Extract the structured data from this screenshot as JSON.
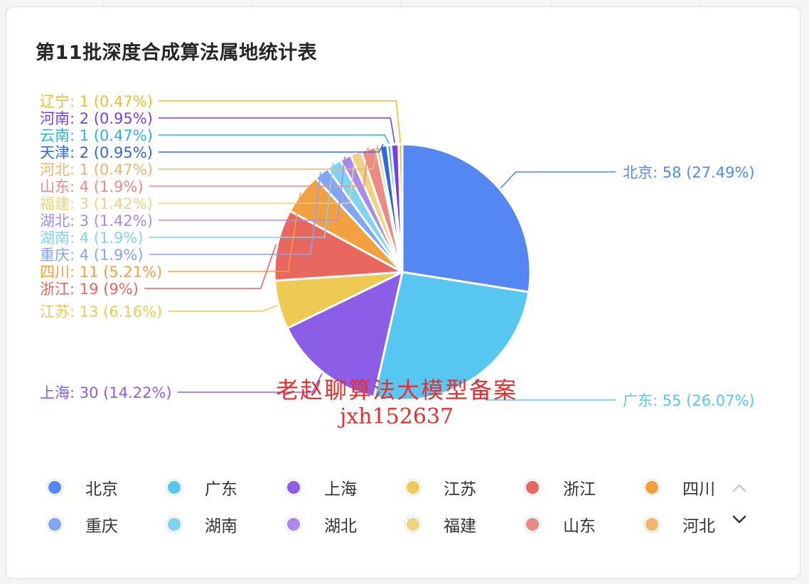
{
  "chart_data": {
    "type": "pie",
    "title": "第11批深度合成算法属地统计表",
    "slices": [
      {
        "label": "北京",
        "value": 58,
        "percent": "27.49%",
        "color": "#5487f2"
      },
      {
        "label": "广东",
        "value": 55,
        "percent": "26.07%",
        "color": "#57c7f2"
      },
      {
        "label": "上海",
        "value": 30,
        "percent": "14.22%",
        "color": "#8c5ee8"
      },
      {
        "label": "江苏",
        "value": 13,
        "percent": "6.16%",
        "color": "#eec953"
      },
      {
        "label": "浙江",
        "value": 19,
        "percent": "9%",
        "color": "#e8675f"
      },
      {
        "label": "四川",
        "value": 11,
        "percent": "5.21%",
        "color": "#f2a040"
      },
      {
        "label": "重庆",
        "value": 4,
        "percent": "1.9%",
        "color": "#83a6f2"
      },
      {
        "label": "湖南",
        "value": 4,
        "percent": "1.9%",
        "color": "#7fd4f2"
      },
      {
        "label": "湖北",
        "value": 3,
        "percent": "1.42%",
        "color": "#a98aed"
      },
      {
        "label": "福建",
        "value": 3,
        "percent": "1.42%",
        "color": "#efd382"
      },
      {
        "label": "山东",
        "value": 4,
        "percent": "1.9%",
        "color": "#ec8b86"
      },
      {
        "label": "河北",
        "value": 1,
        "percent": "0.47%",
        "color": "#f3b46b"
      },
      {
        "label": "天津",
        "value": 2,
        "percent": "0.95%",
        "color": "#3168d8"
      },
      {
        "label": "云南",
        "value": 1,
        "percent": "0.47%",
        "color": "#2bb3e6"
      },
      {
        "label": "河南",
        "value": 2,
        "percent": "0.95%",
        "color": "#7a3fe0"
      },
      {
        "label": "辽宁",
        "value": 1,
        "percent": "0.47%",
        "color": "#eebd2c"
      }
    ],
    "legend_position": "bottom",
    "legend_page_items": [
      "北京",
      "广东",
      "上海",
      "江苏",
      "浙江",
      "四川",
      "重庆",
      "湖南",
      "湖北",
      "福建",
      "山东",
      "河北"
    ]
  },
  "watermark": {
    "line1": "老赵聊算法大模型备案",
    "line2": "jxh152637"
  },
  "legend_pager": {
    "up_icon": "chevron-up-icon",
    "down_icon": "chevron-down-icon"
  }
}
